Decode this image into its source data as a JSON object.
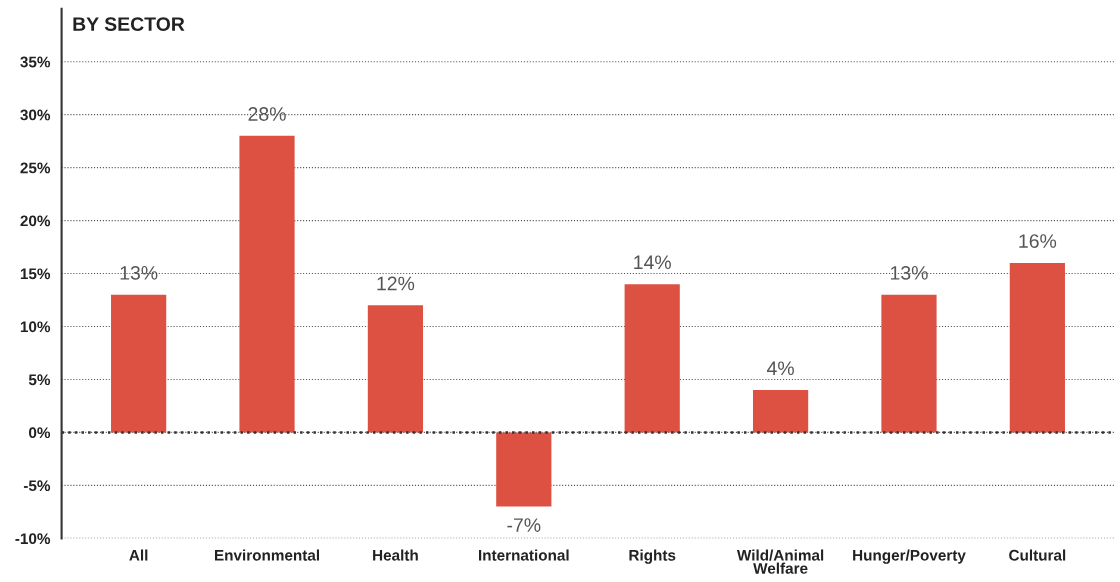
{
  "chart_data": {
    "type": "bar",
    "title": "BY SECTOR",
    "categories": [
      "All",
      "Environmental",
      "Health",
      "International",
      "Rights",
      "Wild/Animal\nWelfare",
      "Hunger/Poverty",
      "Cultural"
    ],
    "values": [
      13,
      28,
      12,
      -7,
      14,
      4,
      13,
      16
    ],
    "value_labels": [
      "13%",
      "28%",
      "12%",
      "-7%",
      "14%",
      "4%",
      "13%",
      "16%"
    ],
    "color": "#dc5142",
    "ylim": [
      -10,
      40
    ],
    "yticks": [
      {
        "value": -10,
        "label": "-10%"
      },
      {
        "value": -5,
        "label": "-5%"
      },
      {
        "value": 0,
        "label": "0%"
      },
      {
        "value": 5,
        "label": "5%"
      },
      {
        "value": 10,
        "label": "10%"
      },
      {
        "value": 15,
        "label": "15%"
      },
      {
        "value": 20,
        "label": "20%"
      },
      {
        "value": 25,
        "label": "25%"
      },
      {
        "value": 30,
        "label": "30%"
      },
      {
        "value": 35,
        "label": "35%"
      }
    ],
    "grid": "y",
    "ref_lines": [
      {
        "axis": "y",
        "value": 0,
        "color": "#333333",
        "line_style": "dotted"
      }
    ]
  }
}
